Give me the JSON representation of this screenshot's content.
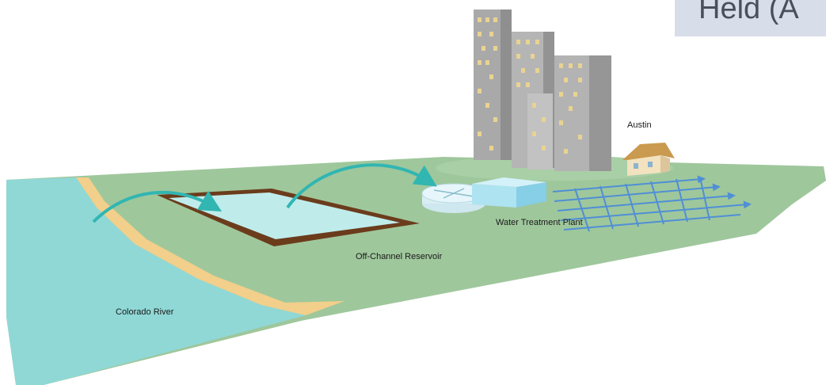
{
  "title_tab": {
    "text": "Held (A"
  },
  "labels": {
    "city": "Austin",
    "plant": "Water Treatment Plant",
    "reservoir": "Off-Channel Reservoir",
    "river": "Colorado River"
  },
  "colors": {
    "ground": "#9fc79c",
    "river": "#8fd8d6",
    "bank": "#f2cf8a",
    "reservoir_water": "#bfeceb",
    "reservoir_edge": "#6b3c1c",
    "arrow": "#31b6b2",
    "pipes": "#4f8fd6",
    "building": "#b8b8b8",
    "window": "#e9d391",
    "house_wall": "#f2e2bf",
    "house_roof": "#c99a4f"
  }
}
